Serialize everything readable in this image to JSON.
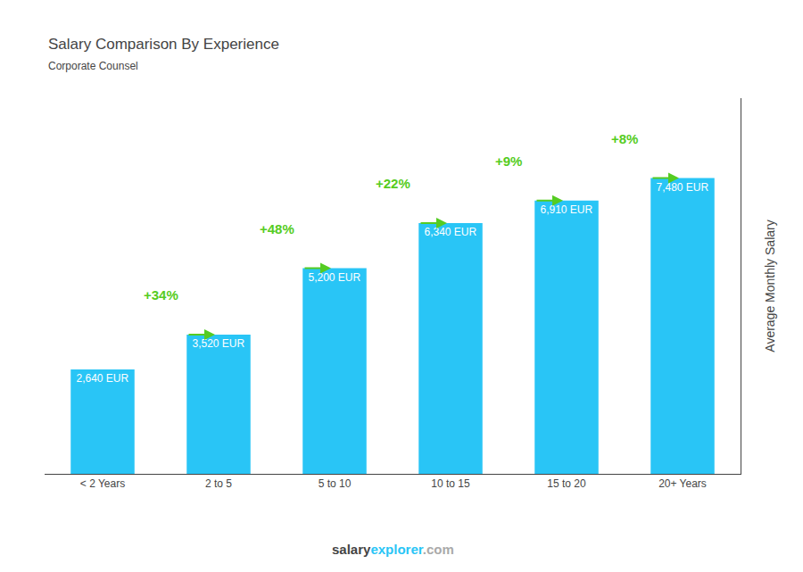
{
  "chart_data": {
    "type": "bar",
    "title": "Salary Comparison By Experience",
    "subtitle": "Corporate Counsel",
    "categories": [
      "< 2 Years",
      "2 to 5",
      "5 to 10",
      "10 to 15",
      "15 to 20",
      "20+ Years"
    ],
    "values": [
      2640,
      3520,
      5200,
      6340,
      6910,
      7480
    ],
    "value_labels": [
      "2,640 EUR",
      "3,520 EUR",
      "5,200 EUR",
      "6,340 EUR",
      "6,910 EUR",
      "7,480 EUR"
    ],
    "data_labels": true,
    "color": "#29c5f6",
    "ylabel": "Average Monthly Salary",
    "ylim": [
      0,
      9500
    ],
    "yticks": [],
    "tick_labels": "x",
    "grid": false,
    "annotations": [
      {
        "text": "+34%",
        "color": "#55cc22"
      },
      {
        "text": "+48%",
        "color": "#55cc22"
      },
      {
        "text": "+22%",
        "color": "#55cc22"
      },
      {
        "text": "+9%",
        "color": "#55cc22"
      },
      {
        "text": "+8%",
        "color": "#55cc22"
      }
    ],
    "footer": [
      {
        "text": "salary"
      },
      {
        "text": "explorer",
        "color": "#29c5f6"
      },
      {
        "text": ".com",
        "color": "#aaaaaa"
      }
    ]
  }
}
